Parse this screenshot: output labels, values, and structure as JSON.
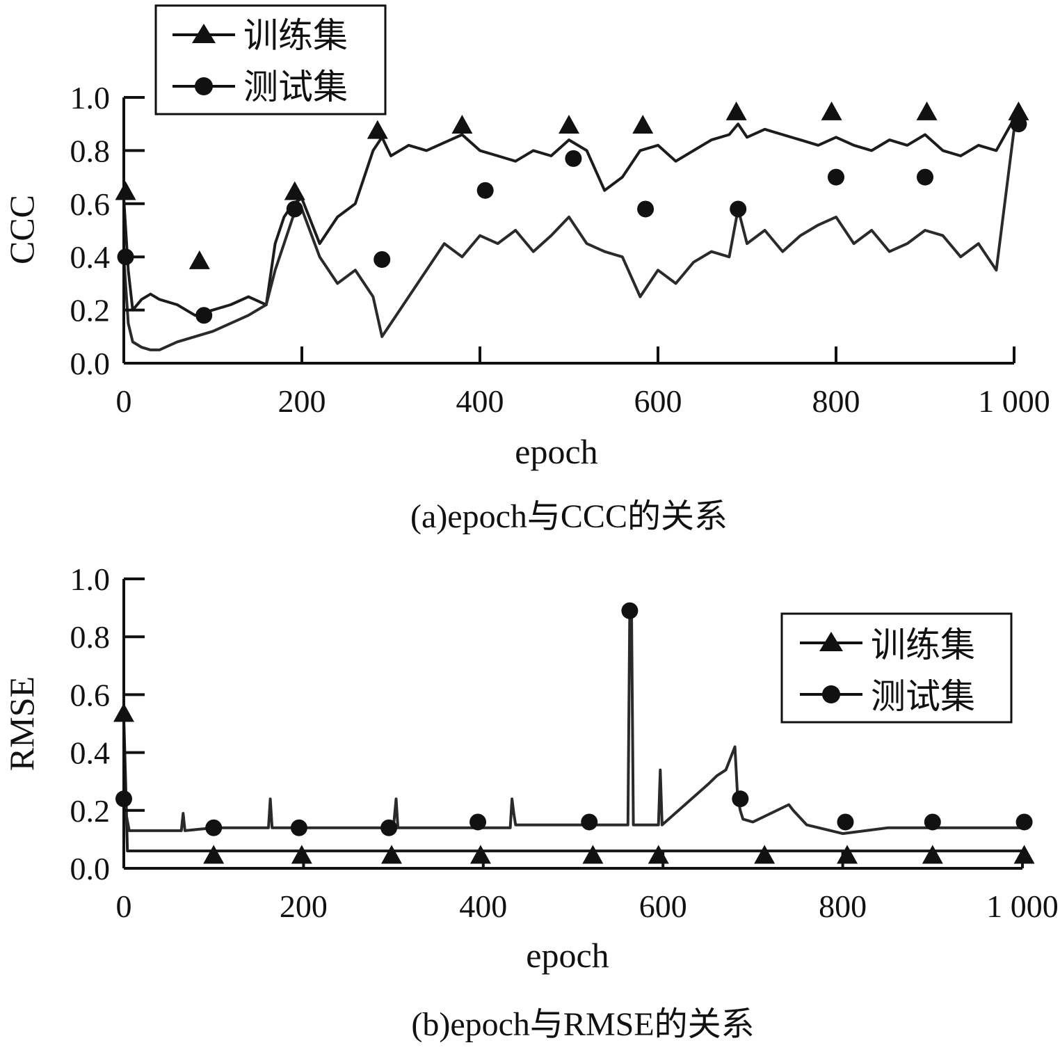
{
  "chart_data": [
    {
      "type": "line",
      "caption": "(a)epoch与CCC的关系",
      "xlabel": "epoch",
      "ylabel": "CCC",
      "xlim": [
        0,
        1000
      ],
      "ylim": [
        0,
        1.0
      ],
      "xticks": [
        "0",
        "200",
        "400",
        "600",
        "800",
        "1 000"
      ],
      "xtick_values": [
        0,
        200,
        400,
        600,
        800,
        1000
      ],
      "yticks": [
        "0.0",
        "0.2",
        "0.4",
        "0.6",
        "0.8",
        "1.0"
      ],
      "ytick_values": [
        0,
        0.2,
        0.4,
        0.6,
        0.8,
        1.0
      ],
      "legend_position": "top-left",
      "series": [
        {
          "name": "训练集",
          "marker": "triangle",
          "x": [
            0,
            5,
            10,
            20,
            30,
            40,
            60,
            80,
            100,
            120,
            140,
            160,
            170,
            180,
            190,
            200,
            220,
            240,
            260,
            280,
            290,
            300,
            320,
            340,
            360,
            380,
            400,
            420,
            440,
            460,
            480,
            500,
            520,
            540,
            560,
            580,
            600,
            620,
            640,
            660,
            680,
            690,
            700,
            720,
            740,
            760,
            780,
            800,
            820,
            840,
            860,
            880,
            900,
            920,
            940,
            960,
            980,
            1000
          ],
          "y": [
            0.62,
            0.35,
            0.2,
            0.24,
            0.26,
            0.24,
            0.22,
            0.18,
            0.2,
            0.22,
            0.25,
            0.22,
            0.45,
            0.55,
            0.6,
            0.62,
            0.45,
            0.55,
            0.6,
            0.8,
            0.85,
            0.78,
            0.82,
            0.8,
            0.83,
            0.86,
            0.8,
            0.78,
            0.76,
            0.8,
            0.78,
            0.84,
            0.8,
            0.65,
            0.7,
            0.8,
            0.82,
            0.76,
            0.8,
            0.84,
            0.86,
            0.9,
            0.85,
            0.88,
            0.86,
            0.84,
            0.82,
            0.85,
            0.82,
            0.8,
            0.84,
            0.82,
            0.86,
            0.8,
            0.78,
            0.82,
            0.8,
            0.92
          ],
          "marker_x": [
            2,
            85,
            192,
            285,
            380,
            500,
            583,
            688,
            795,
            902,
            1005
          ],
          "marker_y": [
            0.64,
            0.38,
            0.64,
            0.87,
            0.89,
            0.89,
            0.89,
            0.94,
            0.94,
            0.94,
            0.94
          ]
        },
        {
          "name": "测试集",
          "marker": "circle",
          "x": [
            0,
            5,
            10,
            20,
            30,
            40,
            60,
            80,
            100,
            120,
            140,
            160,
            170,
            180,
            190,
            200,
            220,
            240,
            260,
            280,
            290,
            300,
            320,
            340,
            360,
            380,
            400,
            420,
            440,
            460,
            480,
            500,
            520,
            540,
            560,
            580,
            600,
            620,
            640,
            660,
            680,
            690,
            700,
            720,
            740,
            760,
            780,
            800,
            820,
            840,
            860,
            880,
            900,
            920,
            940,
            960,
            980,
            1000
          ],
          "y": [
            0.4,
            0.15,
            0.08,
            0.06,
            0.05,
            0.05,
            0.08,
            0.1,
            0.12,
            0.15,
            0.18,
            0.22,
            0.35,
            0.45,
            0.55,
            0.58,
            0.4,
            0.3,
            0.35,
            0.25,
            0.1,
            0.15,
            0.25,
            0.35,
            0.45,
            0.4,
            0.48,
            0.45,
            0.5,
            0.42,
            0.48,
            0.55,
            0.45,
            0.42,
            0.4,
            0.25,
            0.35,
            0.3,
            0.38,
            0.42,
            0.4,
            0.58,
            0.45,
            0.5,
            0.42,
            0.48,
            0.52,
            0.55,
            0.45,
            0.5,
            0.42,
            0.45,
            0.5,
            0.48,
            0.4,
            0.45,
            0.35,
            0.88
          ],
          "marker_x": [
            2,
            90,
            192,
            290,
            406,
            505,
            586,
            690,
            800,
            900,
            1005
          ],
          "marker_y": [
            0.4,
            0.18,
            0.58,
            0.39,
            0.65,
            0.77,
            0.58,
            0.58,
            0.7,
            0.7,
            0.9
          ]
        }
      ]
    },
    {
      "type": "line",
      "caption": "(b)epoch与RMSE的关系",
      "xlabel": "epoch",
      "ylabel": "RMSE",
      "xlim": [
        0,
        1000
      ],
      "ylim": [
        0,
        1.0
      ],
      "xticks": [
        "0",
        "200",
        "400",
        "600",
        "800",
        "1 000"
      ],
      "xtick_values": [
        0,
        200,
        400,
        600,
        800,
        1000
      ],
      "yticks": [
        "0.0",
        "0.2",
        "0.4",
        "0.6",
        "0.8",
        "1.0"
      ],
      "ytick_values": [
        0,
        0.2,
        0.4,
        0.6,
        0.8,
        1.0
      ],
      "legend_position": "top-right",
      "series": [
        {
          "name": "训练集",
          "marker": "triangle",
          "x": [
            0,
            2,
            4,
            50,
            100,
            150,
            200,
            250,
            300,
            350,
            400,
            450,
            500,
            550,
            600,
            650,
            700,
            750,
            800,
            850,
            900,
            950,
            1000
          ],
          "y": [
            0.52,
            0.3,
            0.06,
            0.06,
            0.06,
            0.06,
            0.06,
            0.06,
            0.06,
            0.06,
            0.06,
            0.06,
            0.06,
            0.06,
            0.06,
            0.06,
            0.06,
            0.06,
            0.06,
            0.06,
            0.06,
            0.06,
            0.06
          ],
          "marker_x": [
            0,
            100,
            198,
            298,
            397,
            522,
            595,
            713,
            805,
            900,
            1002
          ],
          "marker_y": [
            0.53,
            0.04,
            0.04,
            0.04,
            0.04,
            0.04,
            0.04,
            0.04,
            0.04,
            0.04,
            0.04
          ]
        },
        {
          "name": "测试集",
          "marker": "circle",
          "x": [
            0,
            3,
            6,
            64,
            66,
            68,
            100,
            161,
            163,
            165,
            200,
            300,
            303,
            305,
            400,
            430,
            432,
            434,
            436,
            500,
            561,
            563,
            565,
            567,
            595,
            597,
            599,
            650,
            660,
            670,
            680,
            683,
            686,
            689,
            700,
            740,
            745,
            760,
            800,
            850,
            900,
            950,
            1000
          ],
          "y": [
            0.24,
            0.18,
            0.13,
            0.13,
            0.19,
            0.13,
            0.14,
            0.14,
            0.24,
            0.14,
            0.14,
            0.14,
            0.24,
            0.14,
            0.14,
            0.14,
            0.24,
            0.19,
            0.15,
            0.15,
            0.15,
            0.88,
            0.88,
            0.15,
            0.15,
            0.34,
            0.15,
            0.29,
            0.32,
            0.34,
            0.42,
            0.25,
            0.2,
            0.17,
            0.16,
            0.22,
            0.2,
            0.15,
            0.12,
            0.14,
            0.14,
            0.14,
            0.14
          ],
          "marker_x": [
            0,
            100,
            195,
            295,
            394,
            518,
            563,
            686,
            803,
            900,
            1002
          ],
          "marker_y": [
            0.24,
            0.14,
            0.14,
            0.14,
            0.16,
            0.16,
            0.89,
            0.24,
            0.16,
            0.16,
            0.16
          ]
        }
      ]
    }
  ]
}
